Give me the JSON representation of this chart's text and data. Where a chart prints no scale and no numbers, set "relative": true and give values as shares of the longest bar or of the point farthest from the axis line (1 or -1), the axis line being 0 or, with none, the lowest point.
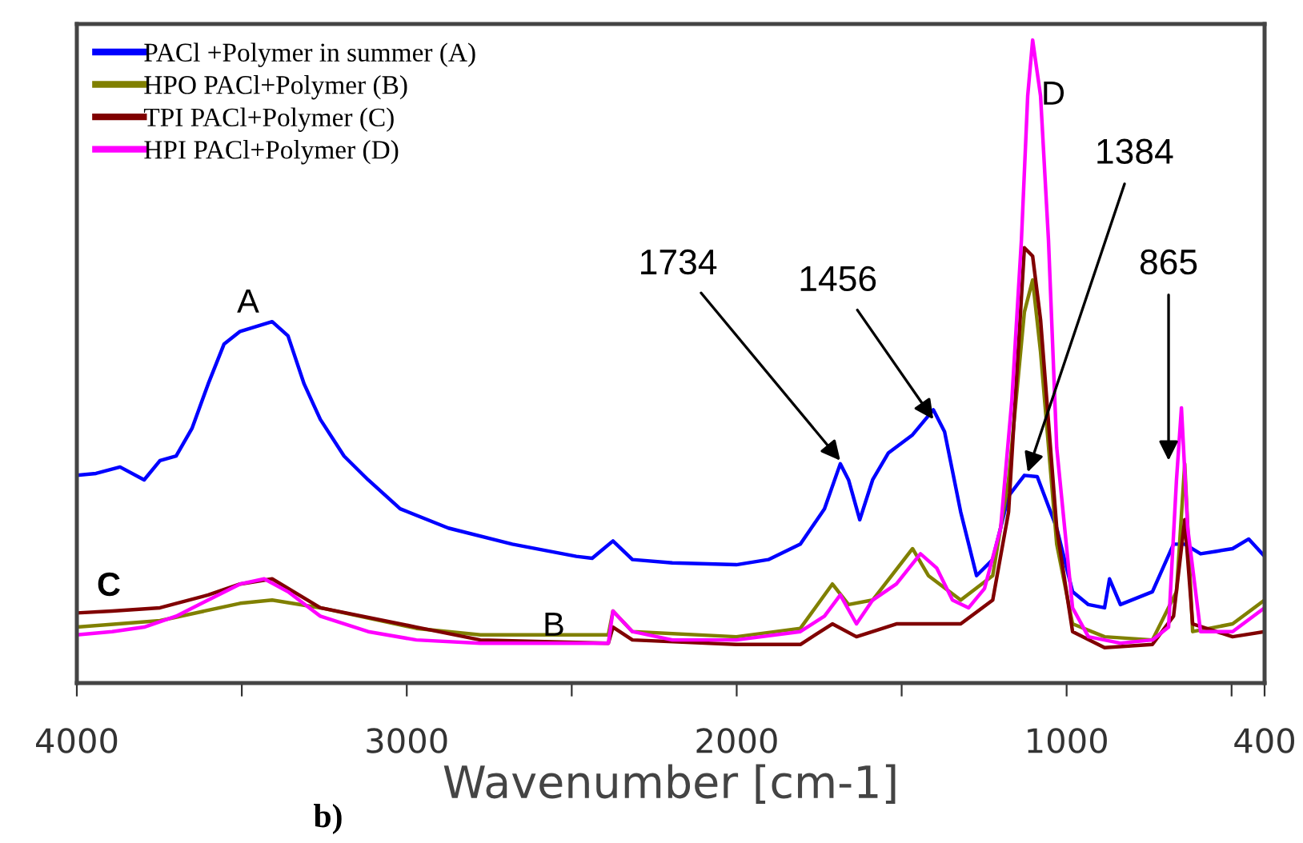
{
  "chart_data": {
    "type": "line",
    "relative": true,
    "xlabel": "Wavenumber [cm-1]",
    "xlim": [
      4000,
      400
    ],
    "xticks": [
      4000,
      {
        "value": 3500,
        "label": null
      },
      3000,
      {
        "value": 2500,
        "label": null
      },
      2000,
      {
        "value": 1500,
        "label": null
      },
      1000,
      {
        "value": 500,
        "label": null
      },
      400
    ],
    "legend": "top left",
    "grid": false,
    "marker": "none",
    "line_style": "solid",
    "series": [
      {
        "name": "PACl +Polymer in summer (A)",
        "color": "#0000ff",
        "x": [
          4000,
          3942,
          3869,
          3796,
          3748,
          3699,
          3651,
          3602,
          3554,
          3505,
          3408,
          3360,
          3311,
          3262,
          3190,
          3117,
          3020,
          2874,
          2680,
          2486,
          2438,
          2375,
          2316,
          2195,
          2001,
          1904,
          1807,
          1734,
          1686,
          1661,
          1627,
          1588,
          1540,
          1467,
          1404,
          1370,
          1321,
          1273,
          1224,
          1176,
          1128,
          1089,
          1030,
          982,
          934,
          885,
          870,
          837,
          740,
          676,
          642,
          594,
          545,
          497,
          448,
          400
        ],
        "values": [
          0.323,
          0.326,
          0.336,
          0.316,
          0.346,
          0.353,
          0.396,
          0.465,
          0.527,
          0.547,
          0.562,
          0.54,
          0.465,
          0.41,
          0.353,
          0.316,
          0.271,
          0.241,
          0.216,
          0.197,
          0.194,
          0.221,
          0.192,
          0.187,
          0.184,
          0.192,
          0.216,
          0.271,
          0.341,
          0.316,
          0.254,
          0.316,
          0.358,
          0.386,
          0.425,
          0.391,
          0.266,
          0.167,
          0.192,
          0.291,
          0.323,
          0.321,
          0.241,
          0.142,
          0.122,
          0.117,
          0.162,
          0.122,
          0.142,
          0.216,
          0.216,
          0.201,
          0.205,
          0.209,
          0.224,
          0.197
        ]
      },
      {
        "name": "HPO PACl+Polymer (B)",
        "color": "#808000",
        "x": [
          4000,
          3748,
          3505,
          3408,
          3262,
          2971,
          2777,
          2389,
          2375,
          2316,
          2001,
          1807,
          1710,
          1661,
          1588,
          1467,
          1419,
          1321,
          1224,
          1176,
          1128,
          1103,
          1079,
          1030,
          982,
          885,
          740,
          667,
          642,
          618,
          497,
          400
        ],
        "values": [
          0.087,
          0.097,
          0.124,
          0.129,
          0.117,
          0.085,
          0.075,
          0.075,
          0.112,
          0.08,
          0.072,
          0.085,
          0.154,
          0.122,
          0.129,
          0.209,
          0.167,
          0.129,
          0.167,
          0.316,
          0.577,
          0.627,
          0.515,
          0.216,
          0.092,
          0.072,
          0.067,
          0.142,
          0.341,
          0.08,
          0.092,
          0.129
        ]
      },
      {
        "name": "TPI PACl+Polymer (C)",
        "color": "#800000",
        "x": [
          4000,
          3893,
          3748,
          3602,
          3505,
          3408,
          3262,
          2971,
          2777,
          2389,
          2375,
          2316,
          2001,
          1807,
          1710,
          1637,
          1516,
          1321,
          1224,
          1176,
          1128,
          1103,
          1079,
          1030,
          982,
          885,
          740,
          676,
          642,
          618,
          497,
          400
        ],
        "values": [
          0.109,
          0.112,
          0.117,
          0.137,
          0.154,
          0.162,
          0.117,
          0.087,
          0.067,
          0.062,
          0.087,
          0.067,
          0.06,
          0.06,
          0.092,
          0.072,
          0.092,
          0.092,
          0.129,
          0.266,
          0.677,
          0.664,
          0.565,
          0.241,
          0.08,
          0.055,
          0.06,
          0.104,
          0.254,
          0.092,
          0.072,
          0.08
        ]
      },
      {
        "name": "HPI PACl+Polymer (D)",
        "color": "#ff00ff",
        "x": [
          4000,
          3893,
          3796,
          3699,
          3602,
          3505,
          3432,
          3360,
          3262,
          3117,
          2971,
          2777,
          2389,
          2375,
          2316,
          2195,
          2001,
          1807,
          1734,
          1686,
          1637,
          1588,
          1516,
          1443,
          1394,
          1346,
          1297,
          1249,
          1200,
          1166,
          1137,
          1118,
          1103,
          1079,
          1055,
          1030,
          982,
          934,
          837,
          740,
          691,
          667,
          652,
          633,
          594,
          497,
          400
        ],
        "values": [
          0.075,
          0.08,
          0.087,
          0.104,
          0.129,
          0.154,
          0.162,
          0.142,
          0.104,
          0.08,
          0.067,
          0.062,
          0.062,
          0.112,
          0.08,
          0.067,
          0.067,
          0.08,
          0.104,
          0.137,
          0.092,
          0.129,
          0.154,
          0.201,
          0.179,
          0.129,
          0.117,
          0.147,
          0.241,
          0.44,
          0.689,
          0.913,
          1.0,
          0.913,
          0.689,
          0.366,
          0.117,
          0.072,
          0.062,
          0.067,
          0.087,
          0.316,
          0.428,
          0.241,
          0.08,
          0.08,
          0.117
        ]
      }
    ],
    "annotations": [
      "A",
      "B",
      "C",
      "D",
      {
        "text": "1734",
        "x": 1686,
        "y": 0.346
      },
      {
        "text": "1456",
        "x": 1404,
        "y": 0.41
      },
      {
        "text": "1384",
        "x": 1118,
        "y": 0.328
      },
      {
        "text": "865",
        "x": 691,
        "y": 0.346
      },
      "b)"
    ]
  }
}
